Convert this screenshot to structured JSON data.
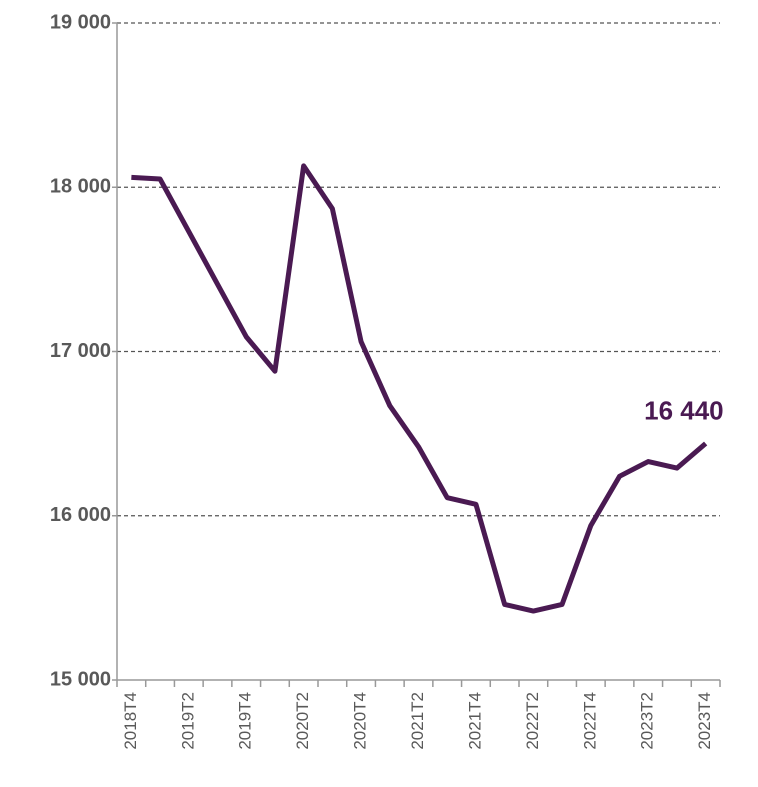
{
  "chart_data": {
    "type": "line",
    "categories": [
      "2018T4",
      null,
      "2019T2",
      null,
      "2019T4",
      null,
      "2020T2",
      null,
      "2020T4",
      null,
      "2021T2",
      null,
      "2021T4",
      null,
      "2022T2",
      null,
      "2022T4",
      null,
      "2023T2",
      null,
      "2023T4"
    ],
    "series": [
      {
        "color": "#4a1a52",
        "values": [
          18060,
          18050,
          17730,
          17410,
          17090,
          16880,
          18130,
          17870,
          17060,
          16670,
          16420,
          16110,
          16070,
          15460,
          15420,
          15460,
          15940,
          16240,
          16330,
          16290,
          16440
        ],
        "value_labels": [
          null,
          null,
          null,
          null,
          null,
          null,
          null,
          null,
          null,
          null,
          null,
          null,
          null,
          null,
          null,
          null,
          null,
          null,
          null,
          null,
          "16 440"
        ]
      }
    ],
    "ylim": [
      15000,
      19000
    ],
    "yticks": [
      {
        "value": 15000,
        "label": "15 000"
      },
      {
        "value": 16000,
        "label": "16 000"
      },
      {
        "value": 17000,
        "label": "17 000"
      },
      {
        "value": 18000,
        "label": "18 000"
      },
      {
        "value": 19000,
        "label": "19 000"
      }
    ],
    "grid": true
  }
}
